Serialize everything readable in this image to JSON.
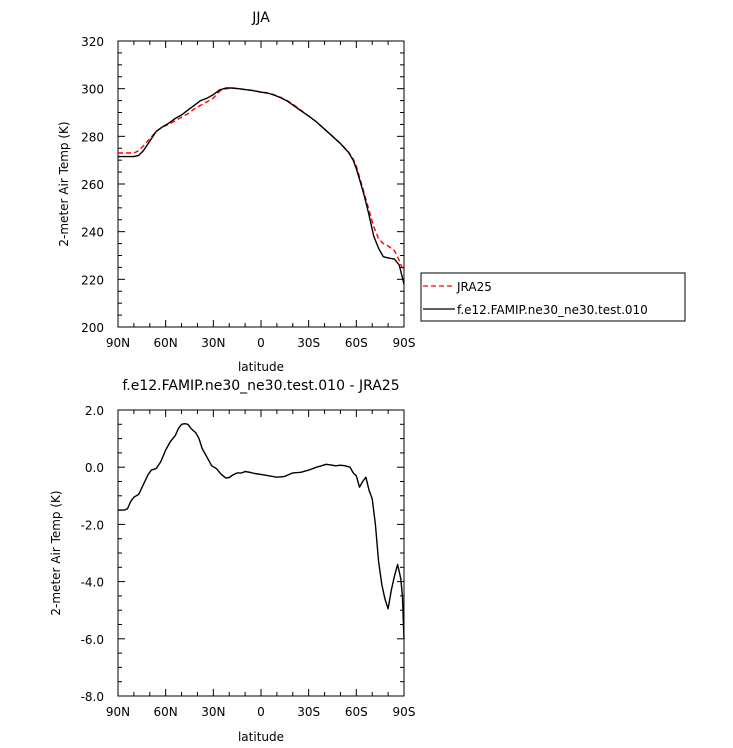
{
  "chart_data": [
    {
      "type": "line",
      "title": "JJA",
      "xlabel": "latitude",
      "ylabel": "2-meter Air Temp (K)",
      "xlim": [
        90,
        -90
      ],
      "ylim": [
        200,
        320
      ],
      "xticks": [
        90,
        60,
        30,
        0,
        -30,
        -60,
        -90
      ],
      "xtick_labels": [
        "90N",
        "60N",
        "30N",
        "0",
        "30S",
        "60S",
        "90S"
      ],
      "yticks": [
        200,
        220,
        240,
        260,
        280,
        300,
        320
      ],
      "ytick_labels": [
        "200",
        "220",
        "240",
        "260",
        "280",
        "300",
        "320"
      ],
      "legend_position": "right, outside plot",
      "series": [
        {
          "name": "JRA25",
          "color": "#ff0000",
          "dash": "dashed",
          "points": [
            [
              90,
              273
            ],
            [
              85,
              273
            ],
            [
              80,
              273
            ],
            [
              77,
              274
            ],
            [
              74,
              276
            ],
            [
              70,
              279
            ],
            [
              66,
              282
            ],
            [
              62,
              284
            ],
            [
              58,
              285
            ],
            [
              54,
              286.5
            ],
            [
              50,
              288
            ],
            [
              46,
              289.5
            ],
            [
              42,
              291.5
            ],
            [
              38,
              293
            ],
            [
              34,
              294.5
            ],
            [
              30,
              296
            ],
            [
              26,
              299
            ],
            [
              22,
              300
            ],
            [
              18,
              300.2
            ],
            [
              14,
              300
            ],
            [
              10,
              299.6
            ],
            [
              5,
              299.2
            ],
            [
              0,
              298.6
            ],
            [
              -4,
              298.2
            ],
            [
              -8,
              297.5
            ],
            [
              -12,
              296.5
            ],
            [
              -16,
              295.2
            ],
            [
              -20,
              293.5
            ],
            [
              -25,
              291
            ],
            [
              -30,
              288.5
            ],
            [
              -35,
              286
            ],
            [
              -40,
              283
            ],
            [
              -45,
              280
            ],
            [
              -50,
              277
            ],
            [
              -55,
              273.5
            ],
            [
              -58,
              270.5
            ],
            [
              -60,
              267.5
            ],
            [
              -62,
              263
            ],
            [
              -65,
              256
            ],
            [
              -68,
              249
            ],
            [
              -71,
              242
            ],
            [
              -74,
              237
            ],
            [
              -77,
              235
            ],
            [
              -80,
              234
            ],
            [
              -84,
              232
            ],
            [
              -87,
              228
            ],
            [
              -90,
              223
            ]
          ]
        },
        {
          "name": "f.e12.FAMIP.ne30_ne30.test.010",
          "color": "#000000",
          "dash": "solid",
          "points": [
            [
              90,
              271.5
            ],
            [
              85,
              271.5
            ],
            [
              80,
              271.5
            ],
            [
              77,
              272
            ],
            [
              74,
              274
            ],
            [
              70,
              278
            ],
            [
              66,
              282
            ],
            [
              62,
              284
            ],
            [
              58,
              285.5
            ],
            [
              54,
              287.5
            ],
            [
              50,
              289
            ],
            [
              46,
              291
            ],
            [
              42,
              293
            ],
            [
              38,
              295
            ],
            [
              34,
              296
            ],
            [
              30,
              297.5
            ],
            [
              26,
              299.5
            ],
            [
              22,
              300.3
            ],
            [
              18,
              300.3
            ],
            [
              14,
              300
            ],
            [
              10,
              299.6
            ],
            [
              5,
              299.2
            ],
            [
              0,
              298.5
            ],
            [
              -4,
              298.2
            ],
            [
              -8,
              297.4
            ],
            [
              -12,
              296.3
            ],
            [
              -16,
              295
            ],
            [
              -20,
              293.2
            ],
            [
              -25,
              290.8
            ],
            [
              -30,
              288.5
            ],
            [
              -35,
              286
            ],
            [
              -40,
              283
            ],
            [
              -45,
              280
            ],
            [
              -50,
              277
            ],
            [
              -55,
              273.3
            ],
            [
              -58,
              270
            ],
            [
              -60,
              266.5
            ],
            [
              -62,
              262
            ],
            [
              -65,
              255
            ],
            [
              -68,
              247
            ],
            [
              -71,
              238
            ],
            [
              -74,
              233
            ],
            [
              -77,
              229.5
            ],
            [
              -80,
              229
            ],
            [
              -84,
              228.5
            ],
            [
              -87,
              226
            ],
            [
              -90,
              218
            ]
          ]
        }
      ]
    },
    {
      "type": "line",
      "title": "f.e12.FAMIP.ne30_ne30.test.010 - JRA25",
      "xlabel": "latitude",
      "ylabel": "2-meter Air Temp (K)",
      "xlim": [
        90,
        -90
      ],
      "ylim": [
        -8,
        2
      ],
      "xticks": [
        90,
        60,
        30,
        0,
        -30,
        -60,
        -90
      ],
      "xtick_labels": [
        "90N",
        "60N",
        "30N",
        "0",
        "30S",
        "60S",
        "90S"
      ],
      "yticks": [
        -8,
        -6,
        -4,
        -2,
        0,
        2
      ],
      "ytick_labels": [
        "-8.0",
        "-6.0",
        "-4.0",
        "-2.0",
        "0.0",
        "2.0"
      ],
      "series": [
        {
          "color": "#000000",
          "dash": "solid",
          "points": [
            [
              90,
              -1.5
            ],
            [
              86,
              -1.5
            ],
            [
              84,
              -1.45
            ],
            [
              82,
              -1.2
            ],
            [
              80,
              -1.05
            ],
            [
              77,
              -0.95
            ],
            [
              74,
              -0.6
            ],
            [
              71,
              -0.25
            ],
            [
              69,
              -0.1
            ],
            [
              66,
              -0.05
            ],
            [
              63,
              0.2
            ],
            [
              60,
              0.6
            ],
            [
              57,
              0.9
            ],
            [
              54,
              1.1
            ],
            [
              52,
              1.35
            ],
            [
              50,
              1.5
            ],
            [
              48,
              1.52
            ],
            [
              46,
              1.5
            ],
            [
              44,
              1.35
            ],
            [
              41,
              1.2
            ],
            [
              39,
              1.0
            ],
            [
              37,
              0.65
            ],
            [
              34,
              0.35
            ],
            [
              31,
              0.05
            ],
            [
              28,
              -0.05
            ],
            [
              25,
              -0.25
            ],
            [
              22,
              -0.38
            ],
            [
              20,
              -0.36
            ],
            [
              18,
              -0.28
            ],
            [
              15,
              -0.2
            ],
            [
              12,
              -0.2
            ],
            [
              10,
              -0.15
            ],
            [
              7,
              -0.18
            ],
            [
              4,
              -0.22
            ],
            [
              0,
              -0.25
            ],
            [
              -5,
              -0.3
            ],
            [
              -10,
              -0.35
            ],
            [
              -15,
              -0.32
            ],
            [
              -20,
              -0.2
            ],
            [
              -25,
              -0.18
            ],
            [
              -30,
              -0.1
            ],
            [
              -35,
              0.0
            ],
            [
              -38,
              0.05
            ],
            [
              -41,
              0.1
            ],
            [
              -44,
              0.08
            ],
            [
              -47,
              0.05
            ],
            [
              -50,
              0.07
            ],
            [
              -53,
              0.05
            ],
            [
              -56,
              0.0
            ],
            [
              -58,
              -0.2
            ],
            [
              -60,
              -0.3
            ],
            [
              -62,
              -0.7
            ],
            [
              -64,
              -0.5
            ],
            [
              -66,
              -0.35
            ],
            [
              -68,
              -0.8
            ],
            [
              -70,
              -1.1
            ],
            [
              -72,
              -2.0
            ],
            [
              -74,
              -3.3
            ],
            [
              -76,
              -4.1
            ],
            [
              -78,
              -4.6
            ],
            [
              -80,
              -4.95
            ],
            [
              -82,
              -4.3
            ],
            [
              -84,
              -3.8
            ],
            [
              -86,
              -3.4
            ],
            [
              -88,
              -3.9
            ],
            [
              -89,
              -4.5
            ],
            [
              -90,
              -6.0
            ]
          ]
        }
      ]
    }
  ]
}
